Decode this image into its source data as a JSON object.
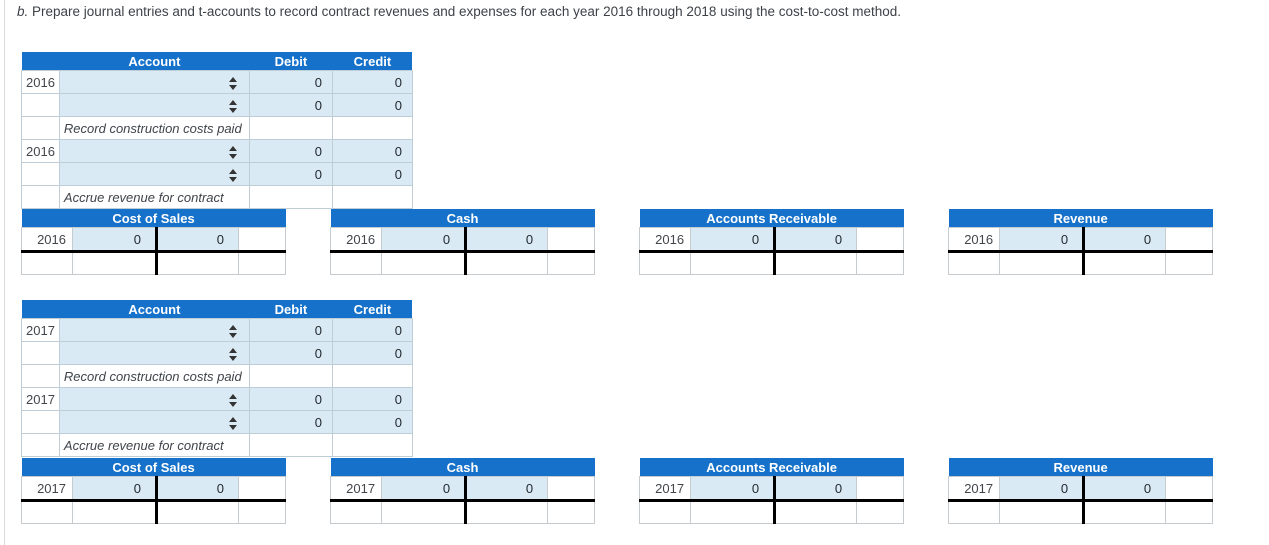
{
  "instruction": {
    "prefix": "b.",
    "text": " Prepare journal entries and t-accounts to record contract revenues and expenses for each year 2016 through 2018 using the cost-to-cost method."
  },
  "colors": {
    "header_blue": "#1571C9",
    "input_fill": "#D9EAF4",
    "thick_rule": "#000000"
  },
  "icons": {
    "account_dropdown": "select-arrows"
  },
  "journals": [
    {
      "headers": {
        "account": "Account",
        "debit": "Debit",
        "credit": "Credit"
      },
      "rows": [
        {
          "year": "2016",
          "debit": "0",
          "credit": "0"
        },
        {
          "year": "",
          "debit": "0",
          "credit": "0"
        },
        {
          "memo": "Record construction costs paid"
        },
        {
          "year": "2016",
          "debit": "0",
          "credit": "0"
        },
        {
          "year": "",
          "debit": "0",
          "credit": "0"
        },
        {
          "memo": "Accrue revenue for contract"
        }
      ]
    },
    {
      "headers": {
        "account": "Account",
        "debit": "Debit",
        "credit": "Credit"
      },
      "rows": [
        {
          "year": "2017",
          "debit": "0",
          "credit": "0"
        },
        {
          "year": "",
          "debit": "0",
          "credit": "0"
        },
        {
          "memo": "Record construction costs paid"
        },
        {
          "year": "2017",
          "debit": "0",
          "credit": "0"
        },
        {
          "year": "",
          "debit": "0",
          "credit": "0"
        },
        {
          "memo": "Accrue revenue for contract"
        }
      ]
    }
  ],
  "taccount_rows": [
    {
      "accounts": [
        {
          "title": "Cost of Sales",
          "year": "2016",
          "debit": "0",
          "credit": "0"
        },
        {
          "title": "Cash",
          "year": "2016",
          "debit": "0",
          "credit": "0"
        },
        {
          "title": "Accounts Receivable",
          "year": "2016",
          "debit": "0",
          "credit": "0"
        },
        {
          "title": "Revenue",
          "year": "2016",
          "debit": "0",
          "credit": "0"
        }
      ]
    },
    {
      "accounts": [
        {
          "title": "Cost of Sales",
          "year": "2017",
          "debit": "0",
          "credit": "0"
        },
        {
          "title": "Cash",
          "year": "2017",
          "debit": "0",
          "credit": "0"
        },
        {
          "title": "Accounts Receivable",
          "year": "2017",
          "debit": "0",
          "credit": "0"
        },
        {
          "title": "Revenue",
          "year": "2017",
          "debit": "0",
          "credit": "0"
        }
      ]
    }
  ]
}
